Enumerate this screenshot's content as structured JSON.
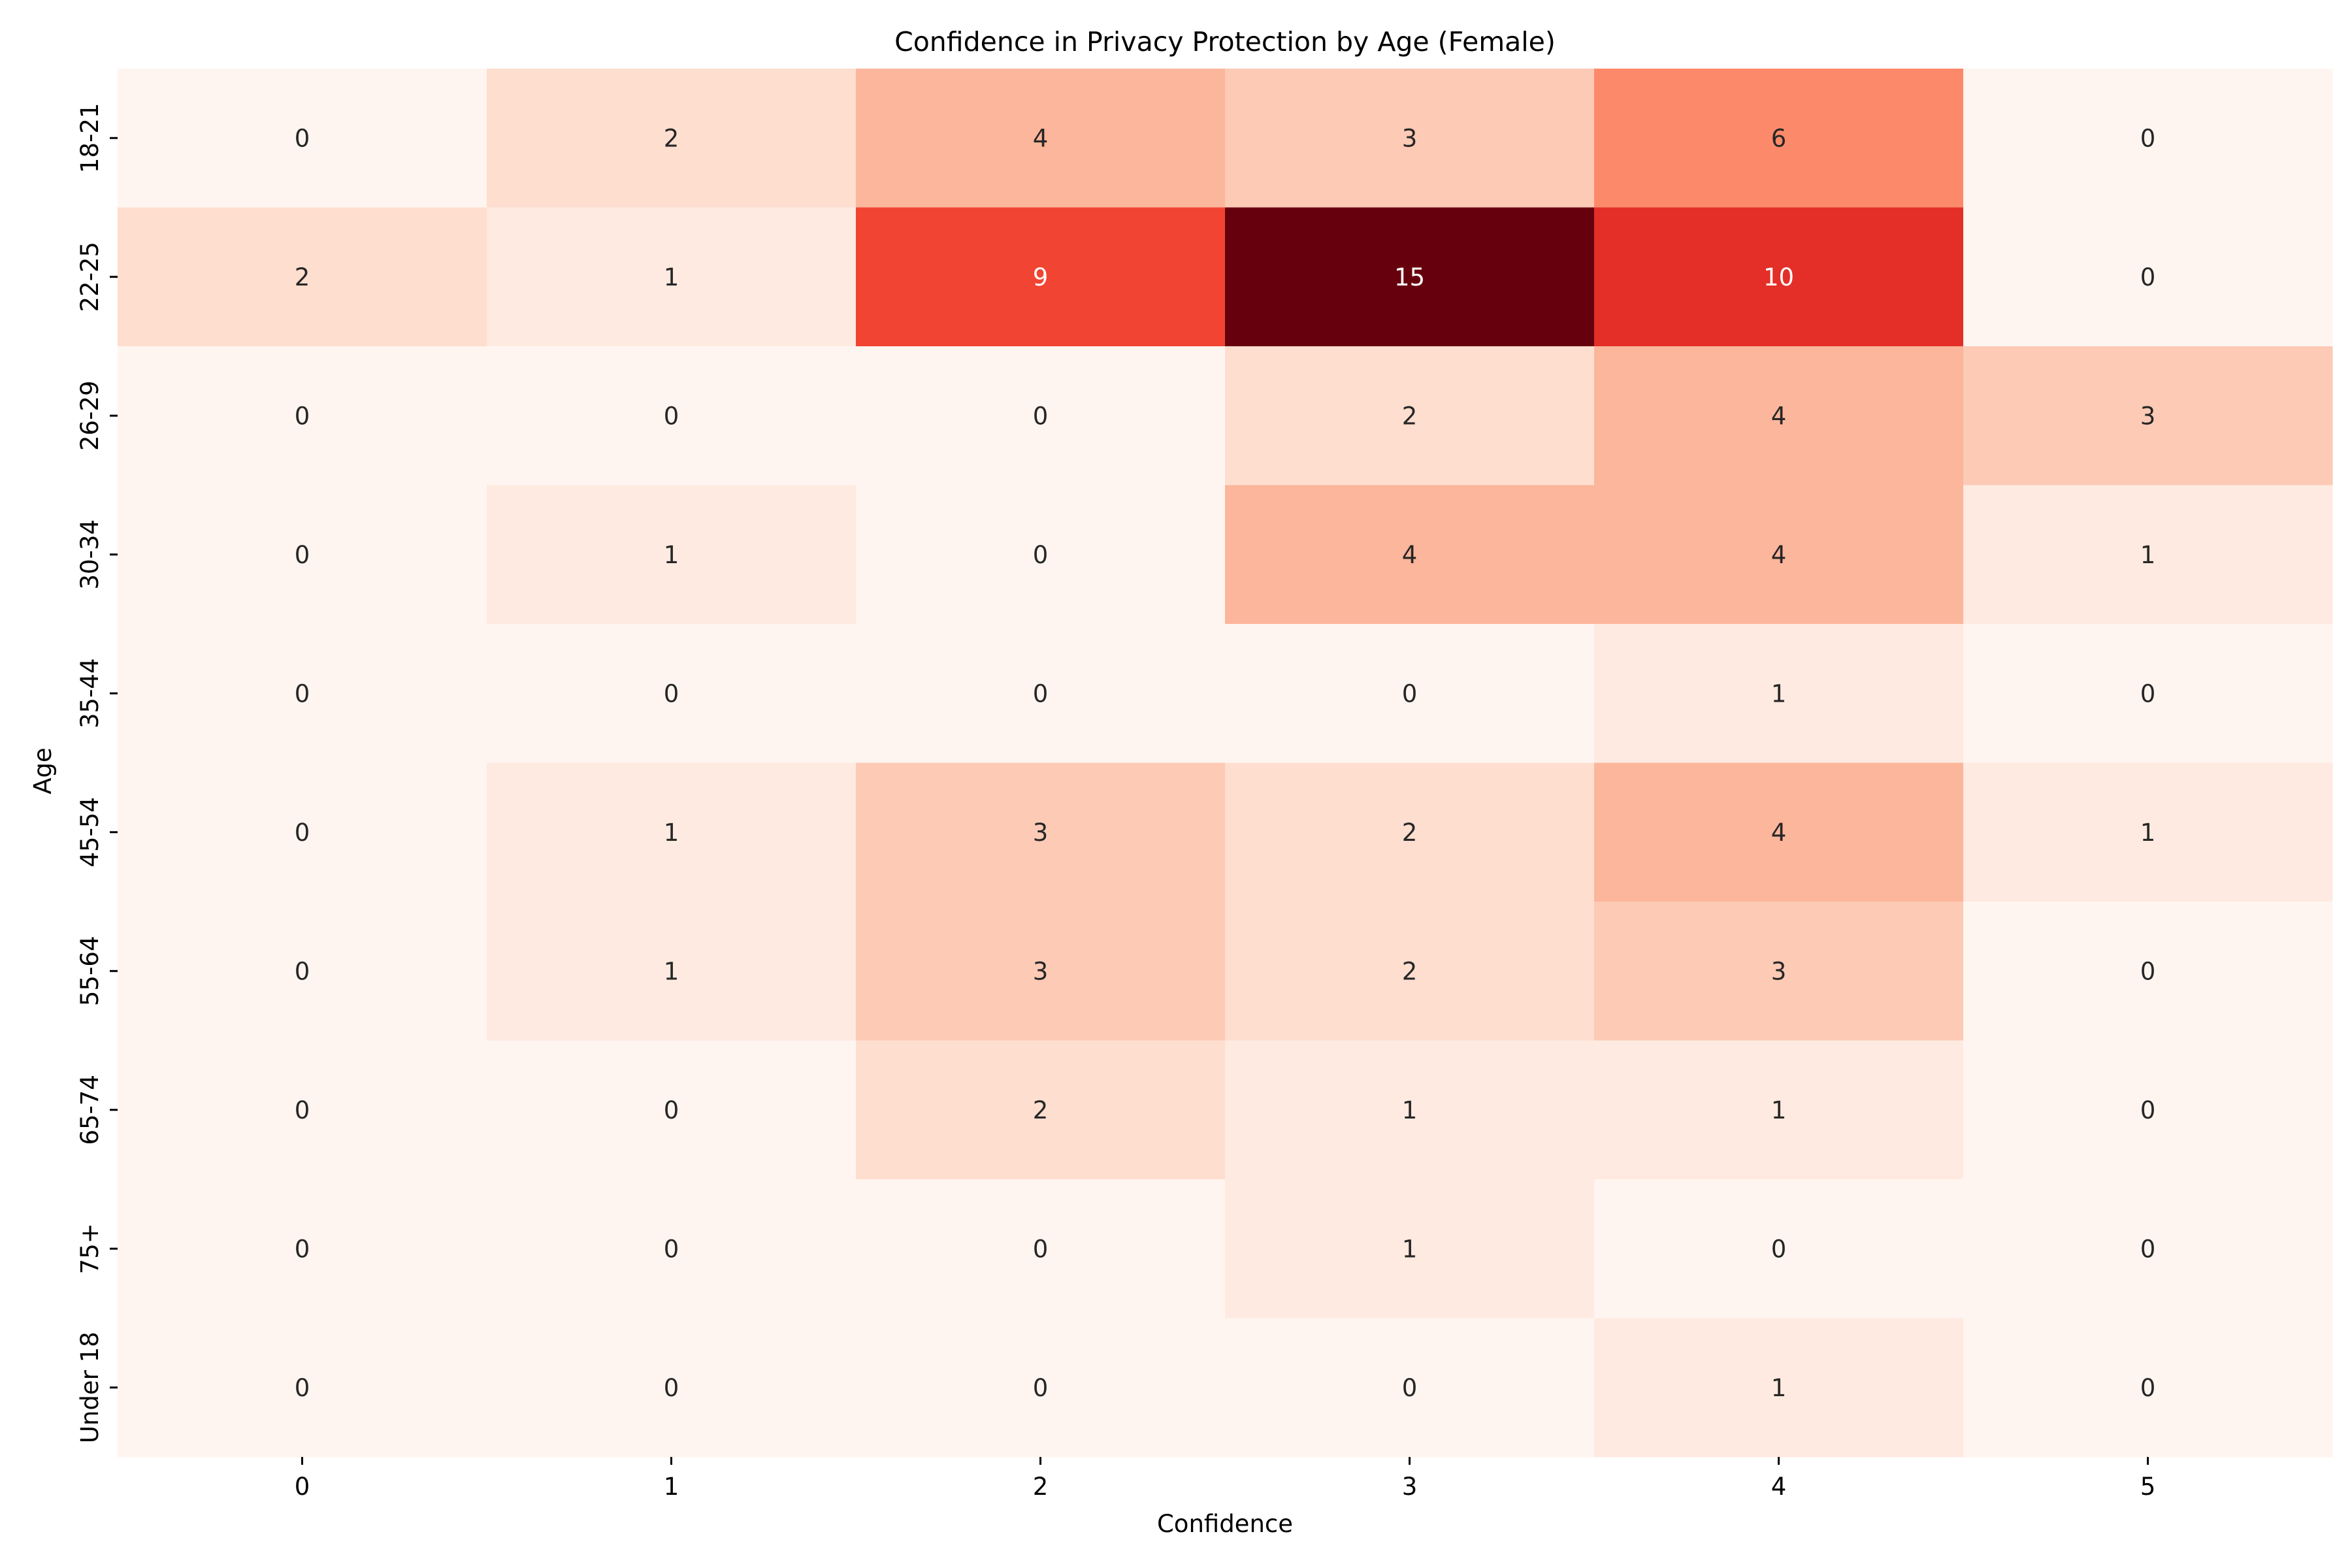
{
  "chart_data": {
    "type": "heatmap",
    "title": "Confidence in Privacy Protection by Age (Female)",
    "xlabel": "Confidence",
    "ylabel": "Age",
    "x_categories": [
      "0",
      "1",
      "2",
      "3",
      "4",
      "5"
    ],
    "y_categories": [
      "18-21",
      "22-25",
      "26-29",
      "30-34",
      "35-44",
      "45-54",
      "55-64",
      "65-74",
      "75+",
      "Under 18"
    ],
    "values": [
      [
        0,
        2,
        4,
        3,
        6,
        0
      ],
      [
        2,
        1,
        9,
        15,
        10,
        0
      ],
      [
        0,
        0,
        0,
        2,
        4,
        3
      ],
      [
        0,
        1,
        0,
        4,
        4,
        1
      ],
      [
        0,
        0,
        0,
        0,
        1,
        0
      ],
      [
        0,
        1,
        3,
        2,
        4,
        1
      ],
      [
        0,
        1,
        3,
        2,
        3,
        0
      ],
      [
        0,
        0,
        2,
        1,
        1,
        0
      ],
      [
        0,
        0,
        0,
        1,
        0,
        0
      ],
      [
        0,
        0,
        0,
        0,
        1,
        0
      ]
    ],
    "colormap": "Reds",
    "value_range": [
      0,
      15
    ],
    "colorbar": false,
    "annotations": true,
    "grid": false
  }
}
